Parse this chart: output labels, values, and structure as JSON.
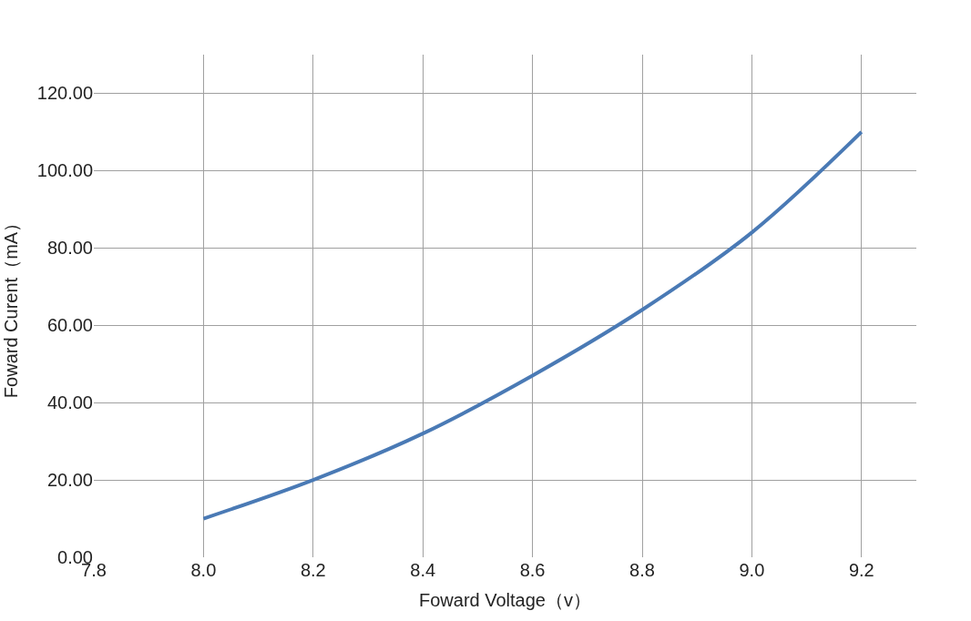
{
  "chart_data": {
    "type": "line",
    "xlabel": "Foward Voltage（v）",
    "ylabel": "Foward Curent（mA）",
    "x": [
      8.0,
      8.2,
      8.4,
      8.6,
      8.8,
      9.0,
      9.2
    ],
    "series": [
      {
        "color": "#4a7ab5",
        "values": [
          10,
          20,
          32,
          47,
          64,
          84,
          110
        ]
      }
    ],
    "xlim": [
      7.8,
      9.3
    ],
    "xticks": [
      7.8,
      {
        "value": 8,
        "label": "8.0"
      },
      8.2,
      8.4,
      8.6,
      8.8,
      {
        "value": 9,
        "label": "9.0"
      },
      9.2
    ],
    "ylim": [
      0,
      130
    ],
    "yticks": [
      {
        "value": 0,
        "label": "0.00"
      },
      {
        "value": 20,
        "label": "20.00"
      },
      {
        "value": 40,
        "label": "40.00"
      },
      {
        "value": 60,
        "label": "60.00"
      },
      {
        "value": 80,
        "label": "80.00"
      },
      {
        "value": 100,
        "label": "100.00"
      },
      {
        "value": 120,
        "label": "120.00"
      }
    ],
    "grid": true,
    "marker": "none",
    "line_style": "solid",
    "legend": false
  }
}
